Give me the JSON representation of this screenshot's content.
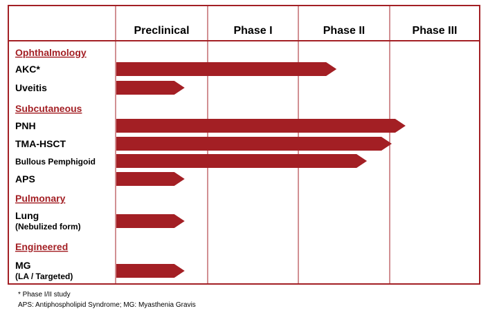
{
  "colors": {
    "frame": "#a31f24",
    "bar": "#a31f24",
    "category": "#a31f24"
  },
  "phases": [
    "Preclinical",
    "Phase I",
    "Phase II",
    "Phase III"
  ],
  "rows": [
    {
      "type": "category",
      "label": "Ophthalmology"
    },
    {
      "type": "program",
      "label": "AKC*",
      "progress": 2.4
    },
    {
      "type": "program",
      "label": "Uveitis",
      "progress": 0.75
    },
    {
      "type": "category",
      "label": "Subcutaneous"
    },
    {
      "type": "program",
      "label": "PNH",
      "progress": 3.15
    },
    {
      "type": "program",
      "label": "TMA-HSCT",
      "progress": 3.0
    },
    {
      "type": "program",
      "label": "Bullous Pemphigoid",
      "small": true,
      "progress": 2.73
    },
    {
      "type": "program",
      "label": "APS",
      "progress": 0.75
    },
    {
      "type": "category",
      "label": "Pulmonary"
    },
    {
      "type": "program",
      "label": "Lung",
      "sublabel": "(Nebulized form)",
      "progress": 0.75
    },
    {
      "type": "category",
      "label": "Engineered"
    },
    {
      "type": "program",
      "label": "MG",
      "sublabel": "(LA / Targeted)",
      "progress": 0.75
    }
  ],
  "footnotes": [
    "*  Phase I/II study",
    "APS: Antiphospholipid Syndrome; MG: Myasthenia Gravis"
  ]
}
